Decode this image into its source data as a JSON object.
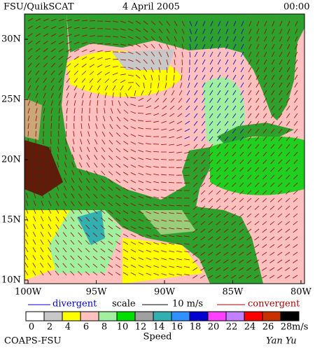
{
  "header": {
    "source": "FSU/QuikSCAT",
    "date": "4 April 2005",
    "time": "00:00"
  },
  "map": {
    "xlim": [
      -100.26,
      -79.74
    ],
    "ylim": [
      9.7,
      32.1
    ],
    "xticks": [
      {
        "value": -100,
        "label": "100W"
      },
      {
        "value": -95,
        "label": "95W"
      },
      {
        "value": -90,
        "label": "90W"
      },
      {
        "value": -85,
        "label": "85W"
      },
      {
        "value": -80,
        "label": "80W"
      }
    ],
    "yticks": [
      {
        "value": 10,
        "label": "10N"
      },
      {
        "value": 15,
        "label": "15N"
      },
      {
        "value": 20,
        "label": "20N"
      },
      {
        "value": 25,
        "label": "25N"
      },
      {
        "value": 30,
        "label": "30N"
      }
    ]
  },
  "legend": {
    "divergent": "divergent",
    "scale": "scale",
    "scale_value": "10 m/s",
    "convergent": "convergent",
    "speed_ticks": [
      0,
      2,
      4,
      6,
      8,
      10,
      12,
      14,
      16,
      18,
      20,
      22,
      24,
      26,
      28
    ],
    "speed_colors": [
      "#ffffff",
      "#c8c8c8",
      "#ffff00",
      "#ffc0c0",
      "#a0f0a0",
      "#00e000",
      "#a0a0a0",
      "#30b0b0",
      "#3090ff",
      "#0000d0",
      "#ff40ff",
      "#c080ff",
      "#ff0000",
      "#c83200",
      "#000000"
    ],
    "unit": "m/s",
    "speed_label": "Speed"
  },
  "footer": {
    "org": "COAPS-FSU",
    "author": "Yan Yu"
  }
}
